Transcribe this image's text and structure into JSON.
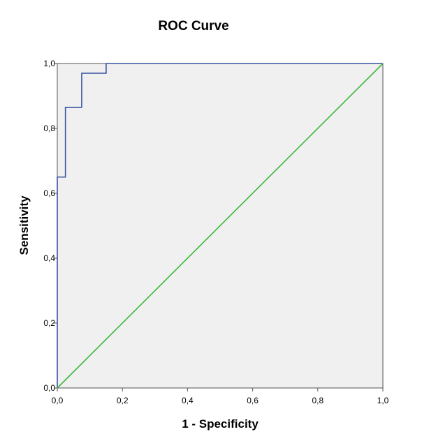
{
  "chart_data": {
    "type": "line",
    "title": "ROC Curve",
    "xlabel": "1 - Specificity",
    "ylabel": "Sensitivity",
    "xlim": [
      0,
      1
    ],
    "ylim": [
      0,
      1
    ],
    "grid": false,
    "x_ticks": [
      "0,0",
      "0,2",
      "0,4",
      "0,6",
      "0,8",
      "1,0"
    ],
    "y_ticks": [
      "0,0",
      "0,2",
      "0,4",
      "0,6",
      "0,8",
      "1,0"
    ],
    "series": [
      {
        "color": "#3a54a4",
        "x": [
          0.0,
          0.0,
          0.0,
          0.025,
          0.025,
          0.075,
          0.075,
          0.15,
          0.15,
          1.0
        ],
        "y": [
          0.0,
          0.0,
          0.65,
          0.65,
          0.865,
          0.865,
          0.97,
          0.97,
          1.0,
          1.0
        ]
      },
      {
        "color": "#3ab83a",
        "x": [
          0,
          1
        ],
        "y": [
          0,
          1
        ]
      }
    ],
    "plot_background": "#f0f0f0"
  }
}
